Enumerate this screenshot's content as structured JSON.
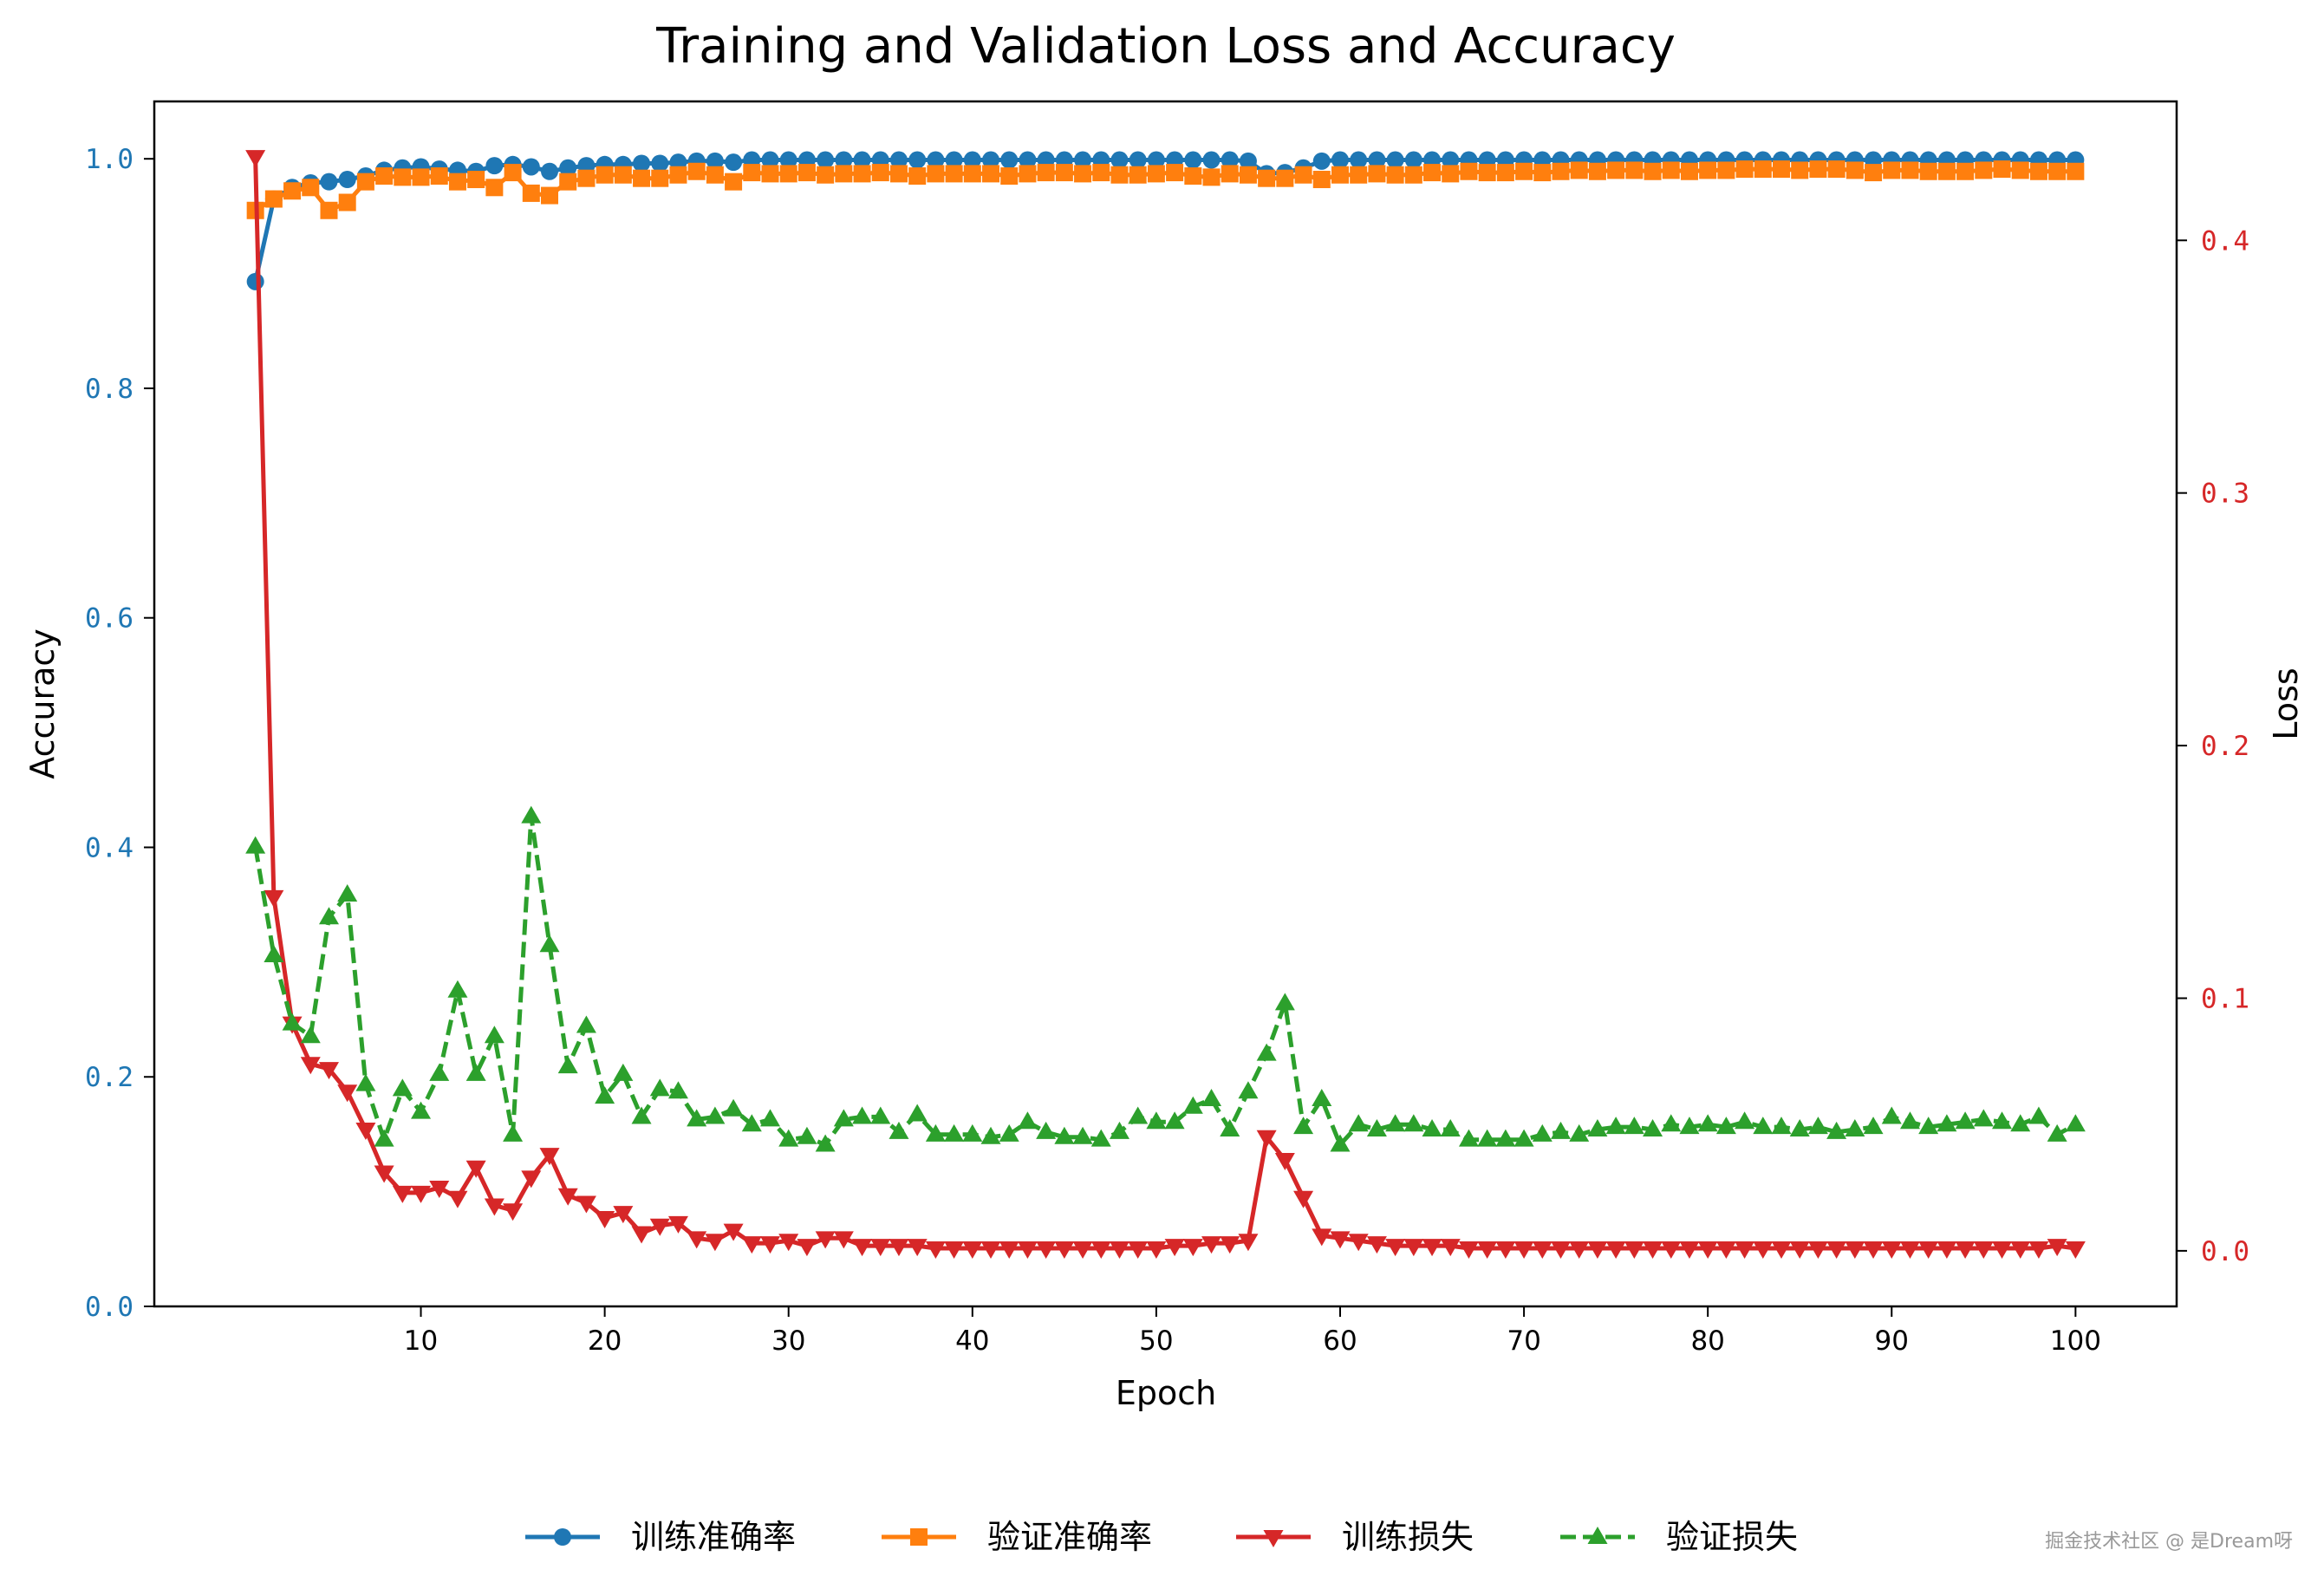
{
  "chart_data": {
    "type": "line",
    "title": "Training and Validation Loss and Accuracy",
    "xlabel": "Epoch",
    "ylabel_left": "Accuracy",
    "ylabel_right": "Loss",
    "x_ticks": [
      10,
      20,
      30,
      40,
      50,
      60,
      70,
      80,
      90,
      100
    ],
    "y_left_ticks": [
      "0.0",
      "0.2",
      "0.4",
      "0.6",
      "0.8",
      "1.0"
    ],
    "y_right_ticks": [
      "0.0",
      "0.1",
      "0.2",
      "0.3",
      "0.4"
    ],
    "xlim": [
      -4.5,
      105.5
    ],
    "ylim_left": [
      0.0,
      1.05
    ],
    "ylim_right": [
      -0.022,
      0.455
    ],
    "left_axis_color": "#1f77b4",
    "right_axis_color": "#d62728",
    "legend_position": "bottom-center",
    "series": [
      {
        "name": "训练准确率",
        "axis": "left",
        "color": "#1f77b4",
        "marker": "circle",
        "linestyle": "solid",
        "x": [
          1,
          2,
          3,
          4,
          5,
          6,
          7,
          8,
          9,
          10,
          11,
          12,
          13,
          14,
          15,
          16,
          17,
          18,
          19,
          20,
          21,
          22,
          23,
          24,
          25,
          26,
          27,
          28,
          29,
          30,
          31,
          32,
          33,
          34,
          35,
          36,
          37,
          38,
          39,
          40,
          41,
          42,
          43,
          44,
          45,
          46,
          47,
          48,
          49,
          50,
          51,
          52,
          53,
          54,
          55,
          56,
          57,
          58,
          59,
          60,
          61,
          62,
          63,
          64,
          65,
          66,
          67,
          68,
          69,
          70,
          71,
          72,
          73,
          74,
          75,
          76,
          77,
          78,
          79,
          80,
          81,
          82,
          83,
          84,
          85,
          86,
          87,
          88,
          89,
          90,
          91,
          92,
          93,
          94,
          95,
          96,
          97,
          98,
          99,
          100
        ],
        "y": [
          0.893,
          0.965,
          0.975,
          0.979,
          0.98,
          0.982,
          0.985,
          0.99,
          0.992,
          0.993,
          0.991,
          0.99,
          0.989,
          0.994,
          0.995,
          0.993,
          0.989,
          0.992,
          0.994,
          0.995,
          0.995,
          0.996,
          0.996,
          0.997,
          0.998,
          0.998,
          0.997,
          0.999,
          0.999,
          0.999,
          0.999,
          0.999,
          0.999,
          0.999,
          0.999,
          0.999,
          0.999,
          0.999,
          0.999,
          0.999,
          0.999,
          0.999,
          0.999,
          0.999,
          0.999,
          0.999,
          0.999,
          0.999,
          0.999,
          0.999,
          0.999,
          0.999,
          0.999,
          0.999,
          0.998,
          0.987,
          0.988,
          0.992,
          0.998,
          0.999,
          0.999,
          0.999,
          0.999,
          0.999,
          0.999,
          0.999,
          0.999,
          0.999,
          0.999,
          0.999,
          0.999,
          0.999,
          0.999,
          0.999,
          0.999,
          0.999,
          0.999,
          0.999,
          0.999,
          0.999,
          0.999,
          0.999,
          0.999,
          0.999,
          0.999,
          0.999,
          0.999,
          0.999,
          0.999,
          0.999,
          0.999,
          0.999,
          0.999,
          0.999,
          0.999,
          0.999,
          0.999,
          0.999,
          0.999,
          0.999
        ]
      },
      {
        "name": "验证准确率",
        "axis": "left",
        "color": "#ff7f0e",
        "marker": "square",
        "linestyle": "solid",
        "x": [
          1,
          2,
          3,
          4,
          5,
          6,
          7,
          8,
          9,
          10,
          11,
          12,
          13,
          14,
          15,
          16,
          17,
          18,
          19,
          20,
          21,
          22,
          23,
          24,
          25,
          26,
          27,
          28,
          29,
          30,
          31,
          32,
          33,
          34,
          35,
          36,
          37,
          38,
          39,
          40,
          41,
          42,
          43,
          44,
          45,
          46,
          47,
          48,
          49,
          50,
          51,
          52,
          53,
          54,
          55,
          56,
          57,
          58,
          59,
          60,
          61,
          62,
          63,
          64,
          65,
          66,
          67,
          68,
          69,
          70,
          71,
          72,
          73,
          74,
          75,
          76,
          77,
          78,
          79,
          80,
          81,
          82,
          83,
          84,
          85,
          86,
          87,
          88,
          89,
          90,
          91,
          92,
          93,
          94,
          95,
          96,
          97,
          98,
          99,
          100
        ],
        "y": [
          0.955,
          0.965,
          0.972,
          0.975,
          0.955,
          0.962,
          0.98,
          0.985,
          0.984,
          0.984,
          0.985,
          0.98,
          0.982,
          0.975,
          0.988,
          0.97,
          0.968,
          0.98,
          0.983,
          0.986,
          0.986,
          0.983,
          0.983,
          0.986,
          0.989,
          0.986,
          0.98,
          0.988,
          0.987,
          0.987,
          0.988,
          0.986,
          0.987,
          0.987,
          0.988,
          0.987,
          0.985,
          0.987,
          0.987,
          0.987,
          0.987,
          0.985,
          0.987,
          0.988,
          0.988,
          0.987,
          0.988,
          0.986,
          0.986,
          0.987,
          0.988,
          0.985,
          0.984,
          0.987,
          0.986,
          0.983,
          0.983,
          0.986,
          0.982,
          0.986,
          0.986,
          0.987,
          0.986,
          0.986,
          0.988,
          0.987,
          0.989,
          0.988,
          0.988,
          0.989,
          0.988,
          0.989,
          0.99,
          0.989,
          0.99,
          0.99,
          0.989,
          0.99,
          0.989,
          0.99,
          0.99,
          0.991,
          0.991,
          0.991,
          0.99,
          0.991,
          0.991,
          0.99,
          0.988,
          0.99,
          0.99,
          0.989,
          0.989,
          0.989,
          0.99,
          0.991,
          0.99,
          0.989,
          0.989,
          0.989
        ]
      },
      {
        "name": "训练损失",
        "axis": "right",
        "color": "#d62728",
        "marker": "triangle_down",
        "linestyle": "solid",
        "x": [
          1,
          2,
          3,
          4,
          5,
          6,
          7,
          8,
          9,
          10,
          11,
          12,
          13,
          14,
          15,
          16,
          17,
          18,
          19,
          20,
          21,
          22,
          23,
          24,
          25,
          26,
          27,
          28,
          29,
          30,
          31,
          32,
          33,
          34,
          35,
          36,
          37,
          38,
          39,
          40,
          41,
          42,
          43,
          44,
          45,
          46,
          47,
          48,
          49,
          50,
          51,
          52,
          53,
          54,
          55,
          56,
          57,
          58,
          59,
          60,
          61,
          62,
          63,
          64,
          65,
          66,
          67,
          68,
          69,
          70,
          71,
          72,
          73,
          74,
          75,
          76,
          77,
          78,
          79,
          80,
          81,
          82,
          83,
          84,
          85,
          86,
          87,
          88,
          89,
          90,
          91,
          92,
          93,
          94,
          95,
          96,
          97,
          98,
          99,
          100
        ],
        "y": [
          0.433,
          0.14,
          0.09,
          0.074,
          0.072,
          0.063,
          0.048,
          0.031,
          0.023,
          0.023,
          0.025,
          0.021,
          0.033,
          0.018,
          0.016,
          0.029,
          0.038,
          0.022,
          0.019,
          0.013,
          0.015,
          0.007,
          0.01,
          0.011,
          0.005,
          0.004,
          0.008,
          0.003,
          0.003,
          0.004,
          0.002,
          0.005,
          0.005,
          0.002,
          0.002,
          0.002,
          0.002,
          0.001,
          0.001,
          0.001,
          0.001,
          0.001,
          0.001,
          0.001,
          0.001,
          0.001,
          0.001,
          0.001,
          0.001,
          0.001,
          0.002,
          0.002,
          0.003,
          0.003,
          0.004,
          0.045,
          0.036,
          0.021,
          0.006,
          0.005,
          0.004,
          0.003,
          0.002,
          0.002,
          0.002,
          0.002,
          0.001,
          0.001,
          0.001,
          0.001,
          0.001,
          0.001,
          0.001,
          0.001,
          0.001,
          0.001,
          0.001,
          0.001,
          0.001,
          0.001,
          0.001,
          0.001,
          0.001,
          0.001,
          0.001,
          0.001,
          0.001,
          0.001,
          0.001,
          0.001,
          0.001,
          0.001,
          0.001,
          0.001,
          0.001,
          0.001,
          0.001,
          0.001,
          0.002,
          0.001
        ]
      },
      {
        "name": "验证损失",
        "axis": "right",
        "color": "#2ca02c",
        "marker": "triangle_up",
        "linestyle": "dashed",
        "x": [
          1,
          2,
          3,
          4,
          5,
          6,
          7,
          8,
          9,
          10,
          11,
          12,
          13,
          14,
          15,
          16,
          17,
          18,
          19,
          20,
          21,
          22,
          23,
          24,
          25,
          26,
          27,
          28,
          29,
          30,
          31,
          32,
          33,
          34,
          35,
          36,
          37,
          38,
          39,
          40,
          41,
          42,
          43,
          44,
          45,
          46,
          47,
          48,
          49,
          50,
          51,
          52,
          53,
          54,
          55,
          56,
          57,
          58,
          59,
          60,
          61,
          62,
          63,
          64,
          65,
          66,
          67,
          68,
          69,
          70,
          71,
          72,
          73,
          74,
          75,
          76,
          77,
          78,
          79,
          80,
          81,
          82,
          83,
          84,
          85,
          86,
          87,
          88,
          89,
          90,
          91,
          92,
          93,
          94,
          95,
          96,
          97,
          98,
          99,
          100
        ],
        "y": [
          0.16,
          0.117,
          0.09,
          0.085,
          0.132,
          0.141,
          0.066,
          0.044,
          0.064,
          0.055,
          0.07,
          0.103,
          0.07,
          0.085,
          0.046,
          0.172,
          0.121,
          0.073,
          0.089,
          0.061,
          0.07,
          0.053,
          0.064,
          0.063,
          0.052,
          0.053,
          0.056,
          0.05,
          0.052,
          0.044,
          0.045,
          0.042,
          0.052,
          0.053,
          0.053,
          0.047,
          0.054,
          0.046,
          0.046,
          0.046,
          0.045,
          0.046,
          0.051,
          0.047,
          0.045,
          0.045,
          0.044,
          0.047,
          0.053,
          0.051,
          0.051,
          0.057,
          0.06,
          0.048,
          0.063,
          0.078,
          0.098,
          0.049,
          0.06,
          0.042,
          0.05,
          0.048,
          0.05,
          0.05,
          0.048,
          0.048,
          0.044,
          0.044,
          0.044,
          0.044,
          0.046,
          0.047,
          0.046,
          0.048,
          0.049,
          0.049,
          0.048,
          0.05,
          0.049,
          0.05,
          0.049,
          0.051,
          0.049,
          0.049,
          0.048,
          0.049,
          0.047,
          0.048,
          0.049,
          0.053,
          0.051,
          0.049,
          0.05,
          0.051,
          0.052,
          0.051,
          0.05,
          0.053,
          0.046,
          0.05
        ]
      }
    ]
  },
  "watermark": "掘金技术社区 @ 是Dream呀"
}
